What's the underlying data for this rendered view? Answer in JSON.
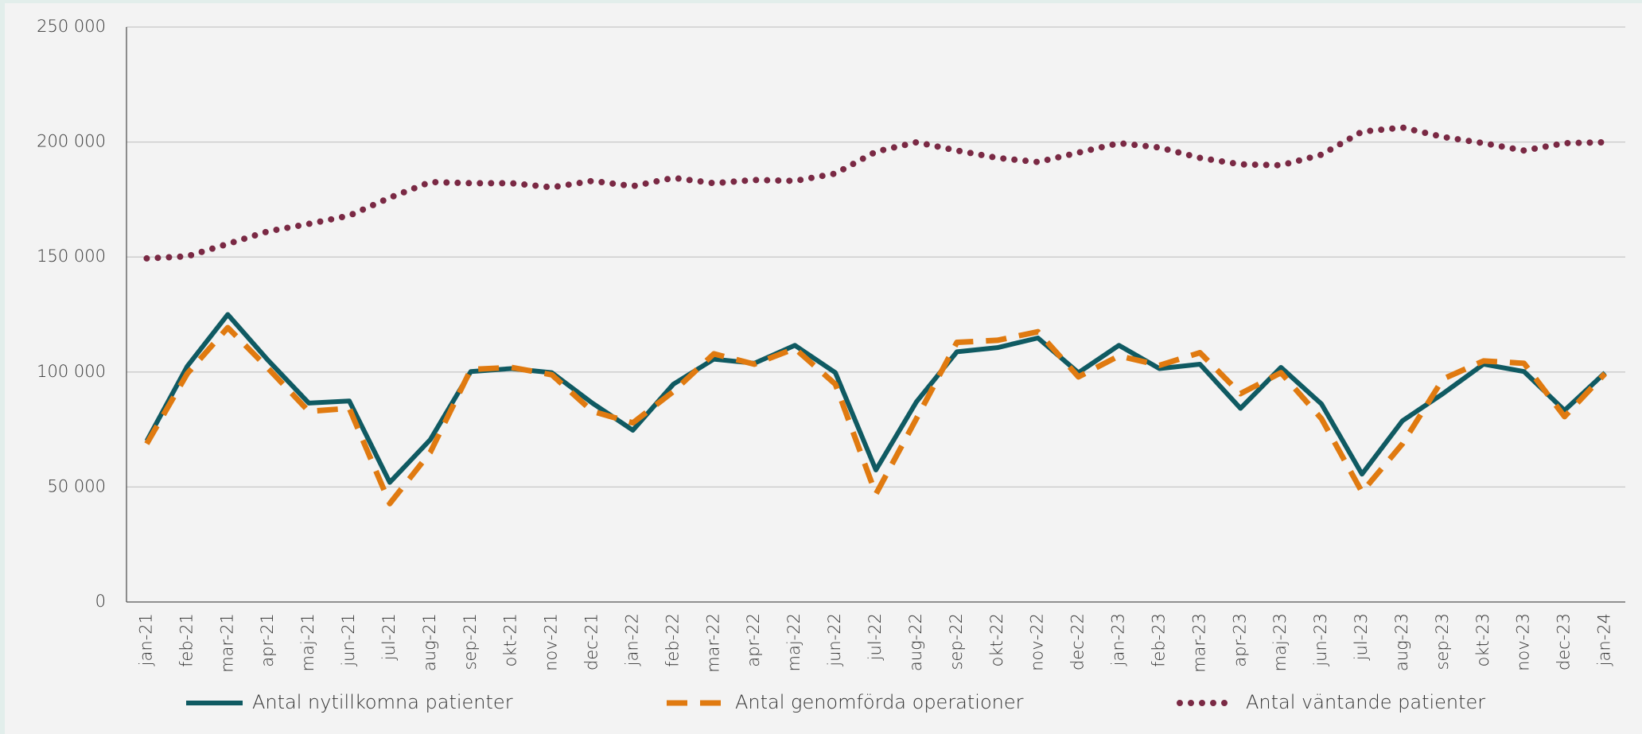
{
  "chart_data": {
    "type": "line",
    "categories": [
      "jan-21",
      "feb-21",
      "mar-21",
      "apr-21",
      "maj-21",
      "jun-21",
      "jul-21",
      "aug-21",
      "sep-21",
      "okt-21",
      "nov-21",
      "dec-21",
      "jan-22",
      "feb-22",
      "mar-22",
      "apr-22",
      "maj-22",
      "jun-22",
      "jul-22",
      "aug-22",
      "sep-22",
      "okt-22",
      "nov-22",
      "dec-22",
      "jan-23",
      "feb-23",
      "mar-23",
      "apr-23",
      "maj-23",
      "jun-23",
      "jul-23",
      "aug-23",
      "sep-23",
      "okt-23",
      "nov-23",
      "dec-23",
      "jan-24"
    ],
    "series": [
      {
        "name": "Antal nytillkomna patienter",
        "color": "#0f5a62",
        "style": "solid",
        "values": [
          70000,
          102500,
          125000,
          105000,
          86500,
          87400,
          52000,
          70600,
          100200,
          101500,
          99700,
          86500,
          74700,
          94700,
          105600,
          103800,
          111600,
          99700,
          57400,
          87000,
          108800,
          110600,
          114800,
          99700,
          111600,
          101500,
          103400,
          84200,
          102000,
          86100,
          55600,
          78800,
          90600,
          103400,
          100200,
          83300,
          99700
        ]
      },
      {
        "name": "Antal genomförda operationer",
        "color": "#e07a10",
        "style": "dashed",
        "values": [
          68800,
          99300,
          119300,
          101500,
          82900,
          84200,
          42800,
          65100,
          101100,
          102000,
          98800,
          82900,
          77900,
          91500,
          107900,
          103400,
          110200,
          94700,
          46900,
          79700,
          112900,
          113800,
          117500,
          97900,
          107000,
          102900,
          108400,
          90600,
          99700,
          79700,
          47800,
          68800,
          97000,
          104800,
          103800,
          80600,
          99300
        ]
      },
      {
        "name": "Antal väntande patienter",
        "color": "#7a2944",
        "style": "dotted",
        "values": [
          149400,
          150300,
          155700,
          161200,
          164400,
          168000,
          175800,
          182600,
          182100,
          182100,
          180300,
          183100,
          180800,
          184400,
          182100,
          183500,
          183100,
          186300,
          195800,
          199900,
          196300,
          193100,
          191300,
          195400,
          199500,
          197600,
          193100,
          190300,
          189900,
          194500,
          204500,
          206300,
          202200,
          199500,
          196300,
          199500,
          199900
        ]
      }
    ],
    "ylim": [
      0,
      250000
    ],
    "yticks": [
      0,
      {
        "value": 50000,
        "label": "50 000"
      },
      {
        "value": 100000,
        "label": "100 000"
      },
      {
        "value": 150000,
        "label": "150 000"
      },
      {
        "value": 200000,
        "label": "200 000"
      },
      {
        "value": 250000,
        "label": "250 000"
      }
    ],
    "grid": true,
    "legend": "bottom"
  }
}
